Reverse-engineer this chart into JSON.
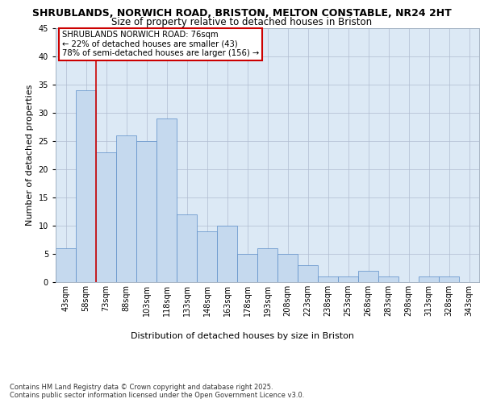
{
  "title1": "SHRUBLANDS, NORWICH ROAD, BRISTON, MELTON CONSTABLE, NR24 2HT",
  "title2": "Size of property relative to detached houses in Briston",
  "xlabel": "Distribution of detached houses by size in Briston",
  "ylabel": "Number of detached properties",
  "categories": [
    "43sqm",
    "58sqm",
    "73sqm",
    "88sqm",
    "103sqm",
    "118sqm",
    "133sqm",
    "148sqm",
    "163sqm",
    "178sqm",
    "193sqm",
    "208sqm",
    "223sqm",
    "238sqm",
    "253sqm",
    "268sqm",
    "283sqm",
    "298sqm",
    "313sqm",
    "328sqm",
    "343sqm"
  ],
  "values": [
    6,
    34,
    23,
    26,
    25,
    29,
    12,
    9,
    10,
    5,
    6,
    5,
    3,
    1,
    1,
    2,
    1,
    0,
    1,
    1,
    0
  ],
  "bar_color": "#c5d9ee",
  "bar_edge_color": "#5b8dc8",
  "vline_x_index": 2,
  "vline_color": "#cc0000",
  "annotation_text": "SHRUBLANDS NORWICH ROAD: 76sqm\n← 22% of detached houses are smaller (43)\n78% of semi-detached houses are larger (156) →",
  "annotation_box_color": "#ffffff",
  "annotation_box_edge": "#cc0000",
  "ylim": [
    0,
    45
  ],
  "yticks": [
    0,
    5,
    10,
    15,
    20,
    25,
    30,
    35,
    40,
    45
  ],
  "background_color": "#dce9f5",
  "footer": "Contains HM Land Registry data © Crown copyright and database right 2025.\nContains public sector information licensed under the Open Government Licence v3.0.",
  "title_fontsize": 9,
  "subtitle_fontsize": 8.5,
  "axis_label_fontsize": 8,
  "tick_fontsize": 7,
  "ylabel_fontsize": 8
}
